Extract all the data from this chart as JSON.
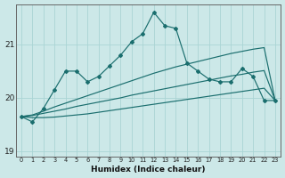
{
  "xlabel": "Humidex (Indice chaleur)",
  "bg_color": "#cce8e8",
  "grid_color": "#aad4d4",
  "line_color": "#1a6e6e",
  "x_values": [
    0,
    1,
    2,
    3,
    4,
    5,
    6,
    7,
    8,
    9,
    10,
    11,
    12,
    13,
    14,
    15,
    16,
    17,
    18,
    19,
    20,
    21,
    22,
    23
  ],
  "main_y": [
    19.65,
    19.55,
    19.8,
    20.15,
    20.5,
    20.5,
    20.3,
    20.4,
    20.6,
    20.8,
    21.05,
    21.2,
    21.6,
    21.35,
    21.3,
    20.65,
    20.5,
    20.35,
    20.3,
    20.3,
    20.55,
    20.4,
    19.95,
    19.95
  ],
  "trend1_y": [
    19.65,
    19.68,
    19.75,
    19.83,
    19.9,
    19.97,
    20.04,
    20.11,
    20.18,
    20.25,
    20.32,
    20.39,
    20.46,
    20.52,
    20.58,
    20.63,
    20.68,
    20.73,
    20.78,
    20.83,
    20.87,
    20.91,
    20.94,
    19.95
  ],
  "trend2_y": [
    19.65,
    19.67,
    19.71,
    19.75,
    19.79,
    19.84,
    19.88,
    19.92,
    19.96,
    20.0,
    20.05,
    20.09,
    20.13,
    20.17,
    20.21,
    20.25,
    20.29,
    20.33,
    20.37,
    20.41,
    20.44,
    20.48,
    20.51,
    19.95
  ],
  "trend3_y": [
    19.65,
    19.63,
    19.63,
    19.64,
    19.66,
    19.68,
    19.7,
    19.73,
    19.76,
    19.79,
    19.82,
    19.85,
    19.88,
    19.91,
    19.94,
    19.97,
    20.0,
    20.03,
    20.06,
    20.09,
    20.12,
    20.15,
    20.18,
    19.95
  ],
  "ylim": [
    18.9,
    21.75
  ],
  "yticks": [
    19,
    20,
    21
  ],
  "xlim": [
    -0.5,
    23.5
  ]
}
